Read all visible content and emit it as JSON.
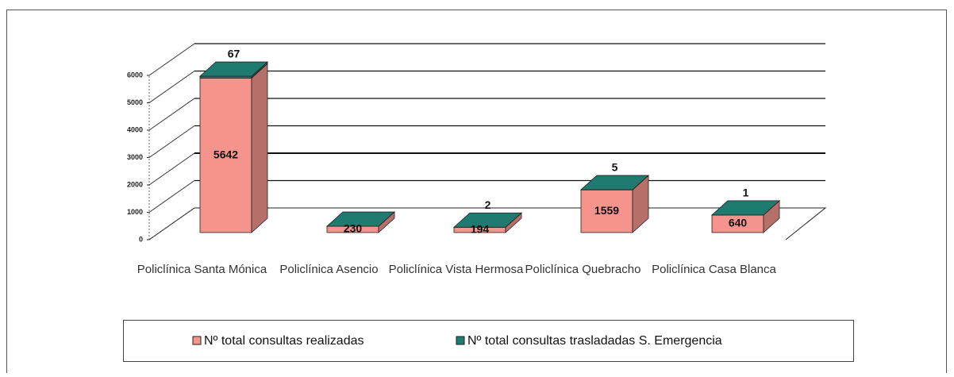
{
  "chart_data": {
    "type": "bar3d_stacked",
    "categories": [
      "Policlínica Santa Mónica",
      "Policlínica Asencio",
      "Policlínica Vista Hermosa",
      "Policlínica Quebracho",
      "Policlínica Casa Blanca"
    ],
    "series": [
      {
        "name": "Nº total consultas realizadas",
        "color": "#f4948c",
        "values": [
          5642,
          230,
          194,
          1559,
          640
        ]
      },
      {
        "name": "Nº total consultas trasladadas S. Emergencia",
        "color": "#1f7b6f",
        "values": [
          67,
          0,
          2,
          5,
          1
        ],
        "value_labels": [
          "67",
          null,
          "2",
          "5",
          "1"
        ]
      }
    ],
    "ylim": [
      0,
      6000
    ],
    "yticks": [
      0,
      1000,
      2000,
      3000,
      4000,
      5000,
      6000
    ],
    "grid": true,
    "legend": "bottom"
  }
}
